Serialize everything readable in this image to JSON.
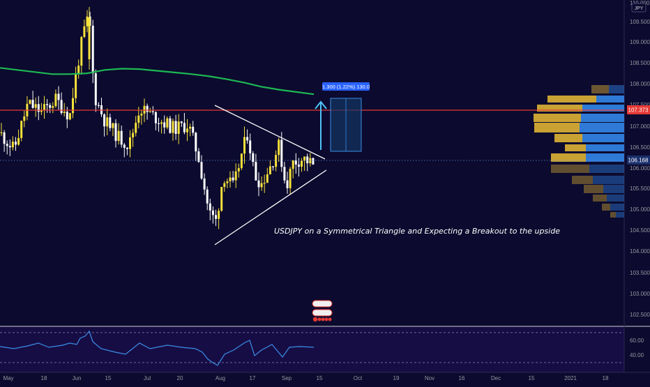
{
  "symbol_badge": "JPY",
  "price_axis": {
    "labels": [
      "110.000",
      "109.500",
      "109.000",
      "108.500",
      "108.000",
      "107.500",
      "107.000",
      "106.500",
      "106.000",
      "105.500",
      "105.000",
      "104.500",
      "104.000",
      "103.500",
      "103.000",
      "102.500"
    ],
    "current_price": "106.168",
    "resistance_price": "107.373"
  },
  "rsi_axis": {
    "labels": [
      "60.00",
      "40.00"
    ]
  },
  "time_axis": {
    "labels": [
      "May",
      "18",
      "Jun",
      "15",
      "Jul",
      "20",
      "Aug",
      "17",
      "Sep",
      "15",
      "Oct",
      "19",
      "Nov",
      "16",
      "Dec",
      "15",
      "2021",
      "18"
    ]
  },
  "annotation": "USDJPY on a Symmetrical Triangle and Expecting a Breakout to the upside",
  "measure_box": "1.300 (1.22%) 130.0",
  "colors": {
    "background": "#0c0a2e",
    "bull_candle": "#f5e13a",
    "bear_candle": "#ffffff",
    "ma_line": "#1db954",
    "resistance": "#e53935",
    "volume_profile_up": "#2e7ad6",
    "volume_profile_down": "#c9a233",
    "rsi_line": "#3a8ee6",
    "target_arrow": "#4fc3f7"
  },
  "chart_data": {
    "type": "candlestick",
    "symbol": "JPY",
    "y_range": [
      102.25,
      110.0
    ],
    "ma_line_values": [
      108.45,
      108.4,
      108.35,
      108.3,
      108.3,
      108.32,
      108.4,
      108.43,
      108.42,
      108.38,
      108.34,
      108.3,
      108.25,
      108.18,
      108.1,
      108.0,
      107.93,
      107.82
    ],
    "resistance_level": 107.373,
    "last_price": 106.168,
    "projection": "1.300 (1.22%) 130.0",
    "rsi_levels": [
      60,
      40
    ]
  }
}
